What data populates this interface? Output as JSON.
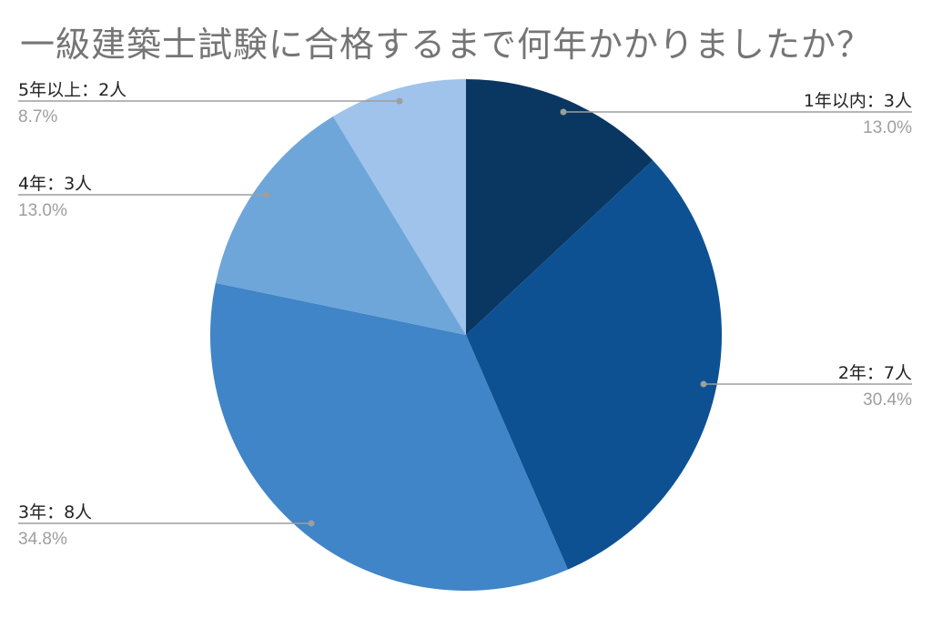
{
  "chart_data": {
    "type": "pie",
    "title": "一級建築士試験に合格するまで何年かかりましたか？",
    "slices": [
      {
        "label": "1年以内：3人",
        "value": 3,
        "percent": "13.0%",
        "color": "#0a3761"
      },
      {
        "label": "2年：7人",
        "value": 7,
        "percent": "30.4%",
        "color": "#0d5193"
      },
      {
        "label": "3年：8人",
        "value": 8,
        "percent": "34.8%",
        "color": "#3f85c7"
      },
      {
        "label": "4年：3人",
        "value": 3,
        "percent": "13.0%",
        "color": "#6fa6d9"
      },
      {
        "label": "5年以上：2人",
        "value": 2,
        "percent": "8.7%",
        "color": "#9fc3ea"
      }
    ],
    "start_angle_deg": 0,
    "direction": "clockwise",
    "legend": "none",
    "leader_line_color": "#9e9e9e"
  }
}
